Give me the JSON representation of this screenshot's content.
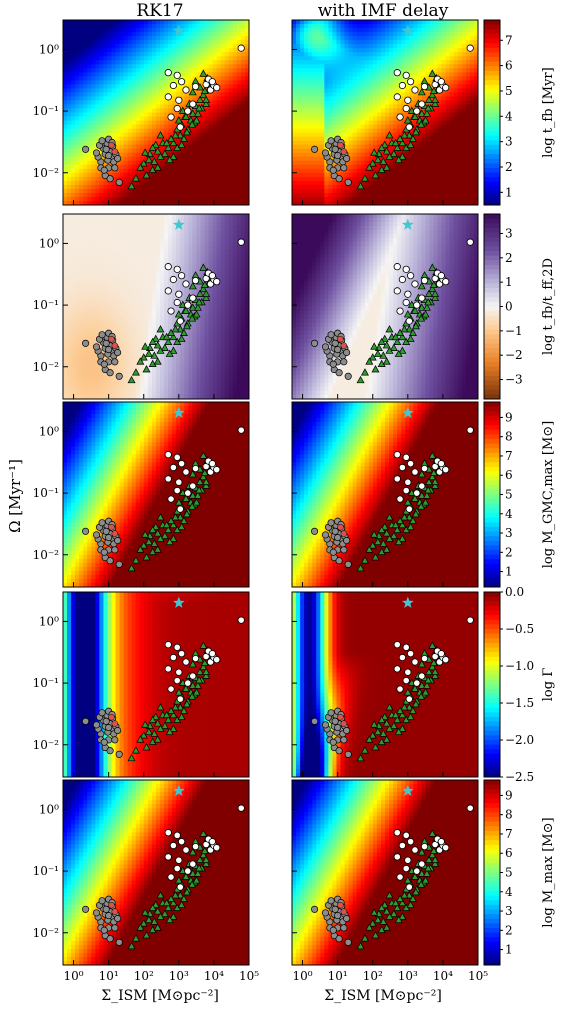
{
  "figure": {
    "column_titles": [
      "RK17",
      "with IMF delay"
    ],
    "xlabel": "Σ_ISM [M⊙pc⁻²]",
    "ylabel": "Ω [Myr⁻¹]"
  },
  "chart_data": {
    "type": "heatmap",
    "x_axis": {
      "scale": "log",
      "range": [
        0.5,
        100000
      ],
      "ticks": [
        "10⁰",
        "10¹",
        "10²",
        "10³",
        "10⁴",
        "10⁵"
      ]
    },
    "y_axis": {
      "scale": "log",
      "range": [
        0.003,
        3
      ],
      "ticks": [
        "10⁻²",
        "10⁻¹",
        "10⁰"
      ]
    },
    "rows": [
      {
        "colorbar": {
          "label": "log t_fb [Myr]",
          "ticks": [
            "1",
            "2",
            "3",
            "4",
            "5",
            "6",
            "7"
          ],
          "range": [
            0.5,
            7.8
          ],
          "cmap": "jet"
        }
      },
      {
        "colorbar": {
          "label": "log t_fb/t_ff,2D",
          "ticks": [
            "3",
            "2",
            "1",
            "0",
            "−1",
            "−2",
            "−3"
          ],
          "range": [
            -3.8,
            3.8
          ],
          "cmap": "purple-orange"
        }
      },
      {
        "colorbar": {
          "label": "log M_GMC,max [M⊙]",
          "ticks": [
            "1",
            "2",
            "3",
            "4",
            "5",
            "6",
            "7",
            "8",
            "9"
          ],
          "range": [
            0.2,
            9.8
          ],
          "cmap": "jet"
        }
      },
      {
        "colorbar": {
          "label": "log Γ",
          "ticks": [
            "0.0",
            "−0.5",
            "−1.0",
            "−1.5",
            "−2.0",
            "−2.5"
          ],
          "range": [
            -2.5,
            0.0
          ],
          "cmap": "jet"
        }
      },
      {
        "colorbar": {
          "label": "log M_max [M⊙]",
          "ticks": [
            "1",
            "2",
            "3",
            "4",
            "5",
            "6",
            "7",
            "8",
            "9"
          ],
          "range": [
            0.2,
            9.8
          ],
          "cmap": "jet"
        }
      }
    ],
    "markers": {
      "star": {
        "x": 1000,
        "y": 2.0,
        "color": "#40c8d0"
      },
      "grey_circles": [
        [
          6,
          0.015
        ],
        [
          8,
          0.02
        ],
        [
          10,
          0.012
        ],
        [
          12,
          0.018
        ],
        [
          7,
          0.025
        ],
        [
          9,
          0.03
        ],
        [
          5,
          0.018
        ],
        [
          11,
          0.022
        ],
        [
          14,
          0.015
        ],
        [
          6,
          0.012
        ],
        [
          8,
          0.009
        ],
        [
          10,
          0.035
        ],
        [
          13,
          0.027
        ],
        [
          16,
          0.02
        ],
        [
          4.5,
          0.021
        ],
        [
          7.5,
          0.011
        ],
        [
          9.5,
          0.016
        ],
        [
          12.5,
          0.031
        ],
        [
          15,
          0.012
        ],
        [
          5.5,
          0.028
        ],
        [
          11,
          0.008
        ],
        [
          8.5,
          0.024
        ],
        [
          6.5,
          0.033
        ],
        [
          18,
          0.017
        ],
        [
          10,
          0.019
        ],
        [
          2.2,
          0.024
        ],
        [
          20,
          0.007
        ]
      ],
      "red_circles": [
        [
          12,
          0.028
        ],
        [
          15,
          0.022
        ]
      ],
      "white_circles": [
        [
          60000,
          1.05
        ],
        [
          500,
          0.42
        ],
        [
          900,
          0.38
        ],
        [
          1200,
          0.3
        ],
        [
          1600,
          0.22
        ],
        [
          700,
          0.26
        ],
        [
          500,
          0.17
        ],
        [
          1000,
          0.15
        ],
        [
          2500,
          0.13
        ],
        [
          900,
          0.11
        ],
        [
          1800,
          0.1
        ],
        [
          3000,
          0.25
        ],
        [
          6000,
          0.27
        ],
        [
          8000,
          0.22
        ],
        [
          7000,
          0.33
        ],
        [
          10000,
          0.26
        ],
        [
          12000,
          0.24
        ],
        [
          9000,
          0.3
        ],
        [
          1100,
          0.055
        ],
        [
          600,
          0.08
        ]
      ],
      "green_triangles": [
        [
          1500,
          0.08
        ],
        [
          2000,
          0.1
        ],
        [
          2500,
          0.09
        ],
        [
          3000,
          0.12
        ],
        [
          4000,
          0.15
        ],
        [
          5000,
          0.18
        ],
        [
          7000,
          0.22
        ],
        [
          8000,
          0.28
        ],
        [
          1200,
          0.06
        ],
        [
          1800,
          0.05
        ],
        [
          2200,
          0.07
        ],
        [
          2800,
          0.065
        ],
        [
          3500,
          0.09
        ],
        [
          4500,
          0.11
        ],
        [
          6000,
          0.13
        ],
        [
          900,
          0.05
        ],
        [
          1100,
          0.04
        ],
        [
          1400,
          0.035
        ],
        [
          1700,
          0.045
        ],
        [
          700,
          0.03
        ],
        [
          800,
          0.04
        ],
        [
          500,
          0.025
        ],
        [
          600,
          0.035
        ],
        [
          400,
          0.02
        ],
        [
          350,
          0.03
        ],
        [
          300,
          0.018
        ],
        [
          250,
          0.022
        ],
        [
          200,
          0.015
        ],
        [
          180,
          0.011
        ],
        [
          150,
          0.02
        ],
        [
          120,
          0.009
        ],
        [
          100,
          0.014
        ],
        [
          80,
          0.012
        ],
        [
          60,
          0.008
        ],
        [
          45,
          0.006
        ],
        [
          3000,
          0.3
        ],
        [
          5000,
          0.4
        ],
        [
          2500,
          0.2
        ],
        [
          4000,
          0.24
        ],
        [
          6500,
          0.34
        ],
        [
          1000,
          0.07
        ],
        [
          1300,
          0.1
        ],
        [
          2000,
          0.13
        ],
        [
          1600,
          0.08
        ],
        [
          2400,
          0.06
        ],
        [
          3200,
          0.07
        ],
        [
          3800,
          0.11
        ],
        [
          5500,
          0.21
        ],
        [
          6000,
          0.15
        ],
        [
          900,
          0.025
        ],
        [
          1200,
          0.028
        ],
        [
          700,
          0.018
        ],
        [
          550,
          0.016
        ],
        [
          450,
          0.03
        ],
        [
          300,
          0.04
        ],
        [
          250,
          0.012
        ],
        [
          220,
          0.028
        ],
        [
          180,
          0.025
        ],
        [
          140,
          0.016
        ],
        [
          110,
          0.021
        ]
      ]
    }
  }
}
